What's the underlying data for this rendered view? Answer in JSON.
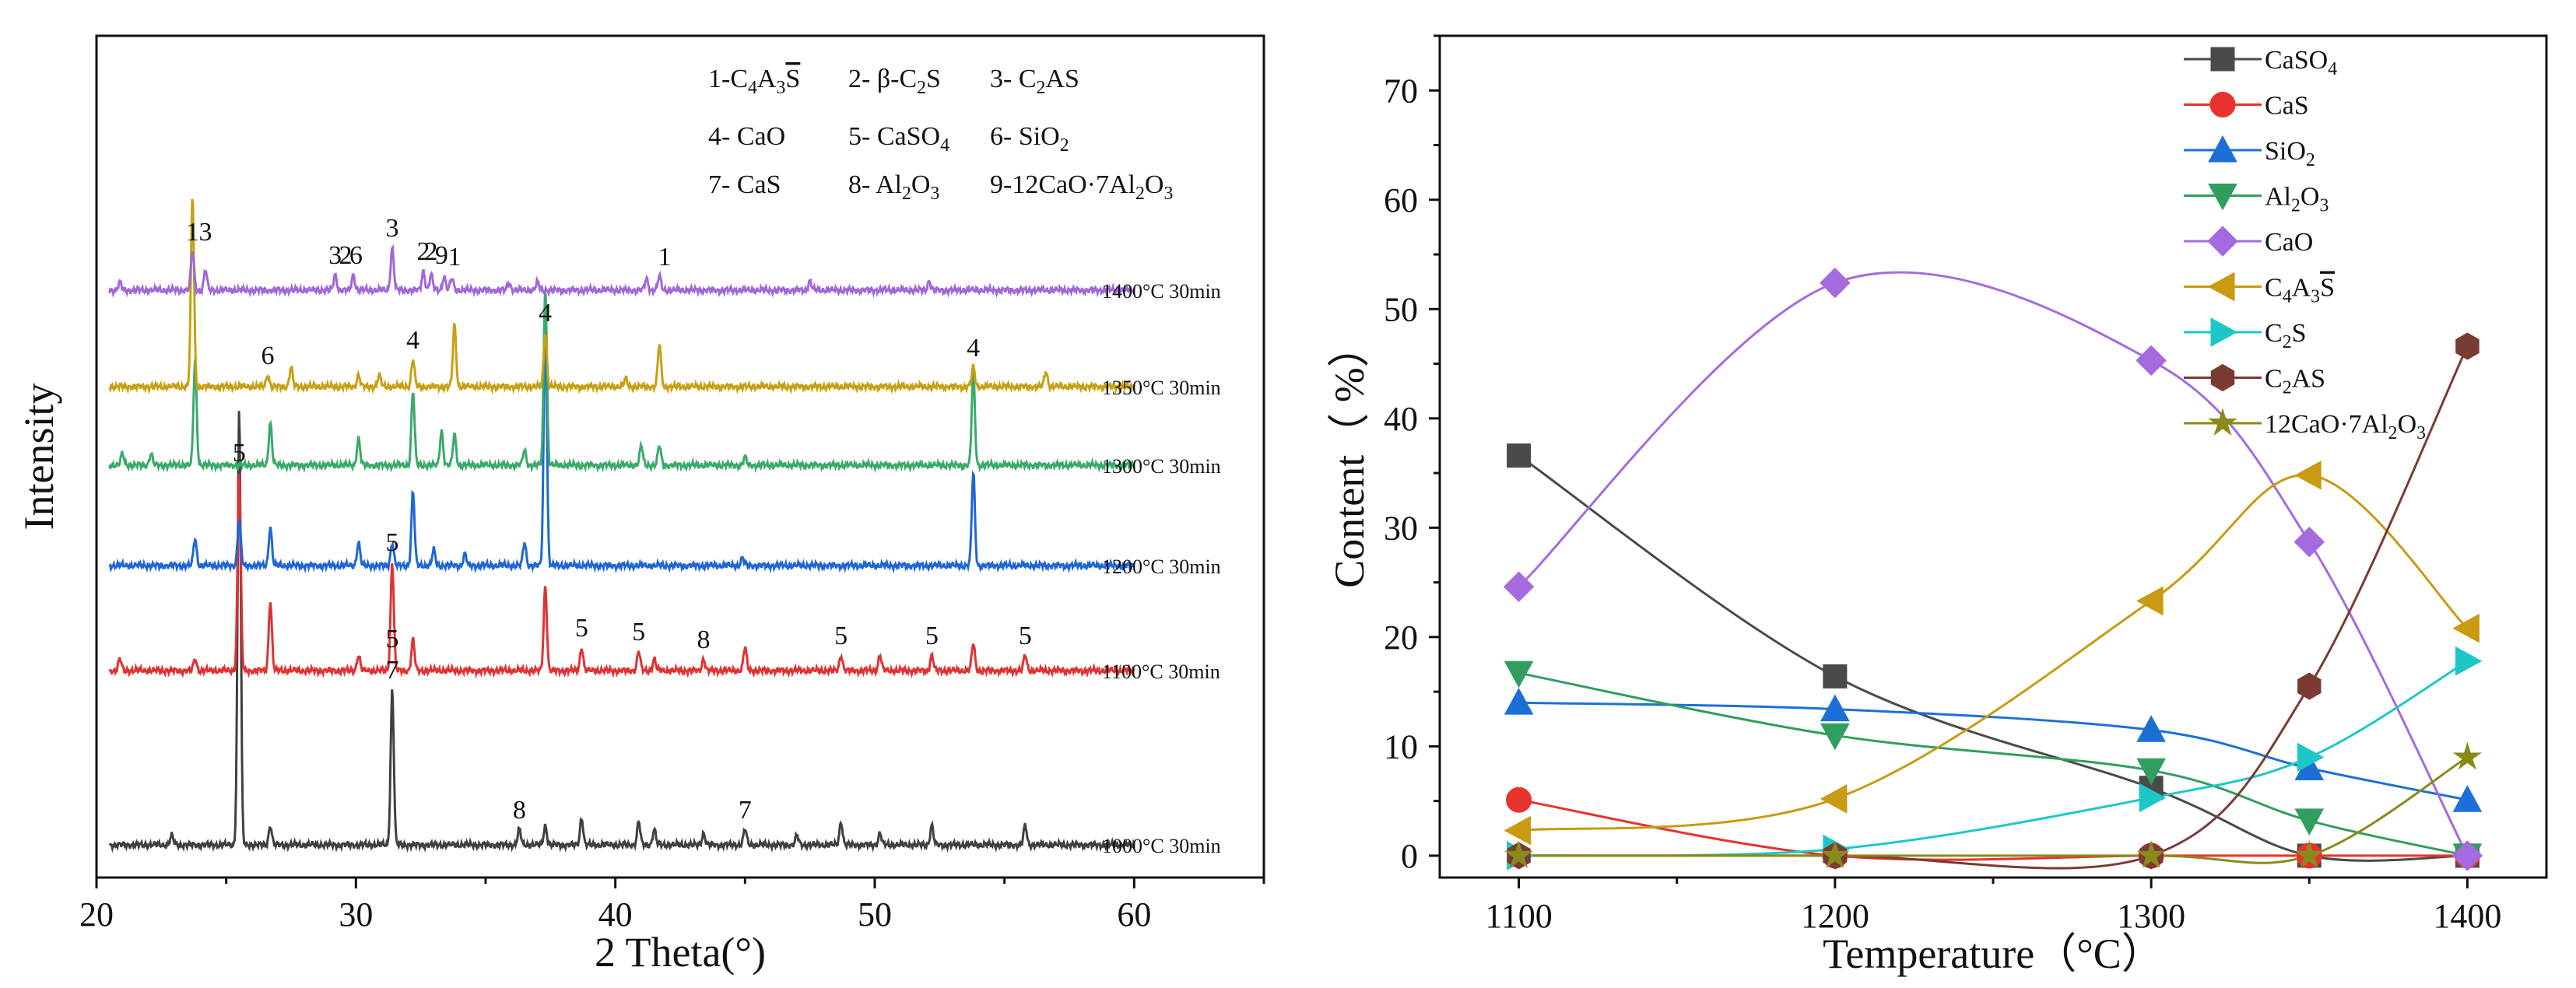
{
  "chart_data": [
    {
      "type": "line",
      "title": "",
      "xlabel": "2 Theta(°)",
      "ylabel": "Intensity",
      "xlim": [
        20,
        65
      ],
      "xticks": [
        20,
        30,
        40,
        50,
        60
      ],
      "legend": {
        "position": "top-right",
        "entries": [
          {
            "num": "1-",
            "base": "C",
            "parts": [
              {
                "t": "C"
              },
              {
                "t": "4",
                "sub": true
              },
              {
                "t": "A"
              },
              {
                "t": "3",
                "sub": true
              },
              {
                "t": "S",
                "bar": true
              }
            ],
            "text": "1-C4A3S̅"
          },
          {
            "num": "2-",
            "parts": [
              {
                "t": " β-C"
              },
              {
                "t": "2",
                "sub": true
              },
              {
                "t": "S"
              }
            ],
            "text": "2- β-C2S"
          },
          {
            "num": "3-",
            "parts": [
              {
                "t": " C"
              },
              {
                "t": "2",
                "sub": true
              },
              {
                "t": "AS"
              }
            ],
            "text": "3- C2AS"
          },
          {
            "num": "4-",
            "parts": [
              {
                "t": " CaO"
              }
            ],
            "text": "4- CaO"
          },
          {
            "num": "5-",
            "parts": [
              {
                "t": " CaSO"
              },
              {
                "t": "4",
                "sub": true
              }
            ],
            "text": "5- CaSO4"
          },
          {
            "num": "6-",
            "parts": [
              {
                "t": " SiO"
              },
              {
                "t": "2",
                "sub": true
              }
            ],
            "text": "6- SiO2"
          },
          {
            "num": "7-",
            "parts": [
              {
                "t": " CaS"
              }
            ],
            "text": "7- CaS"
          },
          {
            "num": "8-",
            "parts": [
              {
                "t": " Al"
              },
              {
                "t": "2",
                "sub": true
              },
              {
                "t": "O"
              },
              {
                "t": "3",
                "sub": true
              }
            ],
            "text": "8- Al2O3"
          },
          {
            "num": "9-",
            "parts": [
              {
                "t": "12CaO·7Al"
              },
              {
                "t": "2",
                "sub": true
              },
              {
                "t": "O"
              },
              {
                "t": "3",
                "sub": true
              }
            ],
            "text": "9-12CaO·7Al2O3"
          }
        ]
      },
      "series": [
        {
          "name": "1000℃ 30min",
          "label": "1000°C 30min",
          "color": "#404040",
          "peaks": [
            [
              25.5,
              560
            ],
            [
              31.4,
              200
            ],
            [
              26.7,
              25
            ],
            [
              38.7,
              35
            ],
            [
              40.9,
              30
            ],
            [
              41.5,
              20
            ],
            [
              36.3,
              20
            ],
            [
              37.3,
              25
            ],
            [
              45.0,
              20
            ],
            [
              48.7,
              30
            ],
            [
              52.2,
              25
            ],
            [
              55.8,
              25
            ],
            [
              50.2,
              15
            ],
            [
              43.4,
              15
            ],
            [
              22.9,
              12
            ],
            [
              47.0,
              12
            ]
          ],
          "annotations": [
            {
              "x": 31.4,
              "text": "5"
            },
            {
              "x": 31.4,
              "text": "7"
            },
            {
              "x": 36.3,
              "text": "8"
            },
            {
              "x": 45.0,
              "text": "7"
            }
          ]
        },
        {
          "name": "1100℃ 30min",
          "label": "1100°C 30min",
          "color": "#e03232",
          "peaks": [
            [
              25.5,
              255
            ],
            [
              26.7,
              90
            ],
            [
              31.4,
              140
            ],
            [
              32.2,
              40
            ],
            [
              37.3,
              110
            ],
            [
              38.7,
              30
            ],
            [
              40.9,
              25
            ],
            [
              43.4,
              15
            ],
            [
              45.0,
              30
            ],
            [
              48.7,
              20
            ],
            [
              52.2,
              20
            ],
            [
              53.8,
              35
            ],
            [
              55.8,
              20
            ],
            [
              20.9,
              15
            ],
            [
              30.1,
              20
            ],
            [
              23.8,
              15
            ],
            [
              41.5,
              15
            ],
            [
              50.2,
              20
            ]
          ],
          "annotations": [
            {
              "x": 25.5,
              "text": "5"
            },
            {
              "x": 31.4,
              "text": "5"
            },
            {
              "x": 38.7,
              "text": "5"
            },
            {
              "x": 40.9,
              "text": "5"
            },
            {
              "x": 43.4,
              "text": "8"
            },
            {
              "x": 48.7,
              "text": "5"
            },
            {
              "x": 52.2,
              "text": "5"
            },
            {
              "x": 55.8,
              "text": "5"
            }
          ]
        },
        {
          "name": "1200℃ 30min",
          "label": "1200°C 30min",
          "color": "#1f66d6",
          "peaks": [
            [
              37.3,
              320
            ],
            [
              53.8,
              120
            ],
            [
              32.2,
              95
            ],
            [
              25.5,
              60
            ],
            [
              26.7,
              50
            ],
            [
              23.8,
              35
            ],
            [
              30.1,
              30
            ],
            [
              31.4,
              30
            ],
            [
              36.5,
              30
            ],
            [
              33.0,
              20
            ],
            [
              34.2,
              15
            ],
            [
              44.9,
              10
            ]
          ],
          "annotations": []
        },
        {
          "name": "1300℃ 30min",
          "label": "1300°C 30min",
          "color": "#3aaa6a",
          "peaks": [
            [
              37.3,
              230
            ],
            [
              23.8,
              135
            ],
            [
              53.8,
              120
            ],
            [
              32.2,
              95
            ],
            [
              26.7,
              55
            ],
            [
              33.3,
              45
            ],
            [
              33.8,
              40
            ],
            [
              30.1,
              35
            ],
            [
              41.0,
              25
            ],
            [
              41.7,
              25
            ],
            [
              21.0,
              15
            ],
            [
              22.1,
              15
            ],
            [
              36.5,
              20
            ],
            [
              45.0,
              10
            ]
          ],
          "annotations": []
        },
        {
          "name": "1350℃ 30min",
          "label": "1350°C 30min",
          "color": "#c8a012",
          "peaks": [
            [
              23.7,
              245
            ],
            [
              33.8,
              80
            ],
            [
              37.3,
              70
            ],
            [
              41.7,
              55
            ],
            [
              32.2,
              35
            ],
            [
              27.5,
              25
            ],
            [
              53.8,
              25
            ],
            [
              56.6,
              20
            ],
            [
              26.6,
              15
            ],
            [
              30.1,
              15
            ],
            [
              30.9,
              15
            ],
            [
              40.4,
              10
            ]
          ],
          "annotations": [
            {
              "x": 26.6,
              "text": "6"
            },
            {
              "x": 32.2,
              "text": "4"
            },
            {
              "x": 37.3,
              "text": "4"
            },
            {
              "x": 53.8,
              "text": "4"
            }
          ]
        },
        {
          "name": "1400℃ 30min",
          "label": "1400°C 30min",
          "color": "#a068d8",
          "peaks": [
            [
              23.7,
              50
            ],
            [
              31.4,
              55
            ],
            [
              24.2,
              25
            ],
            [
              29.2,
              20
            ],
            [
              29.9,
              20
            ],
            [
              32.6,
              25
            ],
            [
              32.9,
              20
            ],
            [
              33.4,
              18
            ],
            [
              33.7,
              15
            ],
            [
              41.2,
              15
            ],
            [
              41.7,
              18
            ],
            [
              47.5,
              12
            ],
            [
              52.1,
              12
            ],
            [
              37.0,
              10
            ],
            [
              20.9,
              10
            ],
            [
              35.9,
              10
            ]
          ],
          "annotations": [
            {
              "x": 23.7,
              "text": "1"
            },
            {
              "x": 24.2,
              "text": "3"
            },
            {
              "x": 29.2,
              "text": "3"
            },
            {
              "x": 29.6,
              "text": "2"
            },
            {
              "x": 30.0,
              "text": "6"
            },
            {
              "x": 31.4,
              "text": "3"
            },
            {
              "x": 32.6,
              "text": "2"
            },
            {
              "x": 32.9,
              "text": "2"
            },
            {
              "x": 33.3,
              "text": "9"
            },
            {
              "x": 33.8,
              "text": "1"
            },
            {
              "x": 41.9,
              "text": "1"
            }
          ]
        }
      ]
    },
    {
      "type": "line",
      "title": "",
      "xlabel": "Temperature（°C）",
      "ylabel": "Content（ %）",
      "xlim": [
        1075,
        1425
      ],
      "ylim": [
        -2,
        75
      ],
      "xticks": [
        1100,
        1200,
        1300,
        1400
      ],
      "yticks": [
        0,
        10,
        20,
        30,
        40,
        50,
        60,
        70
      ],
      "x": [
        1100,
        1200,
        1300,
        1350,
        1400
      ],
      "legend_position": "top-center",
      "series": [
        {
          "name": "CaSO4",
          "parts": [
            {
              "t": "CaSO"
            },
            {
              "t": "4",
              "sub": true
            }
          ],
          "color": "#4a4a4a",
          "marker": "square",
          "values": [
            36.6,
            16.4,
            6.2,
            0,
            0
          ]
        },
        {
          "name": "CaS",
          "parts": [
            {
              "t": "CaS"
            }
          ],
          "color": "#e8322d",
          "marker": "circle",
          "values": [
            5.1,
            0,
            0,
            0,
            0
          ]
        },
        {
          "name": "SiO2",
          "parts": [
            {
              "t": "SiO"
            },
            {
              "t": "2",
              "sub": true
            }
          ],
          "color": "#1d6fd8",
          "marker": "triangle-up",
          "values": [
            14.0,
            13.4,
            11.5,
            8.0,
            5.1
          ]
        },
        {
          "name": "Al2O3",
          "parts": [
            {
              "t": "Al"
            },
            {
              "t": "2",
              "sub": true
            },
            {
              "t": "O"
            },
            {
              "t": "3",
              "sub": true
            }
          ],
          "color": "#2f9e5f",
          "marker": "triangle-down",
          "values": [
            16.7,
            11.0,
            7.8,
            3.2,
            0
          ]
        },
        {
          "name": "CaO",
          "parts": [
            {
              "t": "CaO"
            }
          ],
          "color": "#a46be0",
          "marker": "diamond",
          "values": [
            24.6,
            52.4,
            45.3,
            28.7,
            0
          ]
        },
        {
          "name": "C4A3S̅",
          "parts": [
            {
              "t": "C"
            },
            {
              "t": "4",
              "sub": true
            },
            {
              "t": "A"
            },
            {
              "t": "3",
              "sub": true
            },
            {
              "t": "S",
              "bar": true
            }
          ],
          "color": "#c99a12",
          "marker": "triangle-left",
          "values": [
            2.3,
            5.2,
            23.3,
            34.8,
            20.8
          ]
        },
        {
          "name": "C2S",
          "parts": [
            {
              "t": "C"
            },
            {
              "t": "2",
              "sub": true
            },
            {
              "t": "S"
            }
          ],
          "color": "#1ec7c7",
          "marker": "triangle-right",
          "values": [
            0,
            0.6,
            5.3,
            9.0,
            17.8
          ]
        },
        {
          "name": "C2AS",
          "parts": [
            {
              "t": "C"
            },
            {
              "t": "2",
              "sub": true
            },
            {
              "t": "AS"
            }
          ],
          "color": "#7a3b33",
          "marker": "hexagon",
          "values": [
            0,
            0,
            0,
            15.5,
            46.6
          ]
        },
        {
          "name": "12CaO·7Al2O3",
          "parts": [
            {
              "t": "12CaO·7Al"
            },
            {
              "t": "2",
              "sub": true
            },
            {
              "t": "O"
            },
            {
              "t": "3",
              "sub": true
            }
          ],
          "color": "#8a8a1a",
          "marker": "star",
          "values": [
            0,
            0,
            0,
            0,
            9.0
          ]
        }
      ]
    }
  ]
}
